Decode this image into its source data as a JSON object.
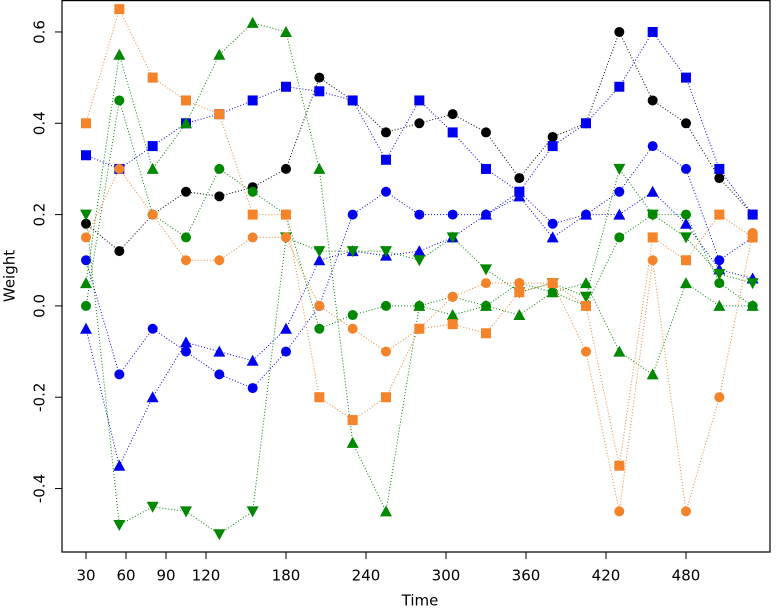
{
  "chart_data": {
    "type": "scatter",
    "x_label": "Time",
    "y_label": "Weight",
    "x": [
      30,
      55,
      80,
      105,
      130,
      155,
      180,
      205,
      230,
      255,
      280,
      305,
      330,
      355,
      380,
      405,
      430,
      455,
      480,
      505,
      530
    ],
    "xlim": [
      12,
      543
    ],
    "ylim": [
      -0.539,
      0.67
    ],
    "xticks": [
      30,
      60,
      90,
      120,
      180,
      240,
      300,
      360,
      420,
      480
    ],
    "yticks": [
      -0.4,
      -0.2,
      {
        "value": 0,
        "label": "0.0"
      },
      0.2,
      0.4,
      0.6
    ],
    "series": [
      {
        "color": "#000000",
        "marker": "circle",
        "values": [
          0.18,
          0.12,
          0.2,
          0.25,
          0.24,
          0.26,
          0.3,
          0.5,
          0.45,
          0.38,
          0.4,
          0.42,
          0.38,
          0.28,
          0.37,
          0.4,
          0.6,
          0.45,
          0.4,
          0.28,
          0.2
        ]
      },
      {
        "color": "#0000ee",
        "marker": "square",
        "values": [
          0.33,
          0.3,
          0.35,
          0.4,
          0.42,
          0.45,
          0.48,
          0.47,
          0.45,
          0.32,
          0.45,
          0.38,
          0.3,
          0.25,
          0.35,
          0.4,
          0.48,
          0.6,
          0.5,
          0.3,
          0.2
        ]
      },
      {
        "color": "#0000ee",
        "marker": "circle",
        "values": [
          0.1,
          -0.15,
          -0.05,
          -0.1,
          -0.15,
          -0.18,
          -0.1,
          0.0,
          0.2,
          0.25,
          0.2,
          0.2,
          0.2,
          0.25,
          0.18,
          0.2,
          0.25,
          0.35,
          0.3,
          0.1,
          0.15
        ]
      },
      {
        "color": "#0000ee",
        "marker": "triangle",
        "values": [
          -0.05,
          -0.35,
          -0.2,
          -0.08,
          -0.1,
          -0.12,
          -0.05,
          0.1,
          0.12,
          0.11,
          0.12,
          0.15,
          0.2,
          0.24,
          0.15,
          0.2,
          0.2,
          0.25,
          0.18,
          0.08,
          0.06
        ]
      },
      {
        "color": "#008800",
        "marker": "triangle",
        "values": [
          0.05,
          0.55,
          0.3,
          0.4,
          0.55,
          0.62,
          0.6,
          0.3,
          -0.3,
          -0.45,
          0.0,
          -0.02,
          0.0,
          -0.02,
          0.03,
          0.05,
          -0.1,
          -0.15,
          0.05,
          0.0,
          0.0
        ]
      },
      {
        "color": "#008800",
        "marker": "triangle-down",
        "values": [
          0.2,
          -0.48,
          -0.44,
          -0.45,
          -0.5,
          -0.45,
          0.15,
          0.12,
          0.12,
          0.12,
          0.1,
          0.15,
          0.08,
          0.03,
          0.05,
          0.02,
          0.3,
          0.2,
          0.15,
          0.07,
          0.05
        ]
      },
      {
        "color": "#008800",
        "marker": "circle",
        "values": [
          0.0,
          0.45,
          0.2,
          0.15,
          0.3,
          0.25,
          0.2,
          -0.05,
          -0.02,
          0.0,
          0.0,
          0.02,
          0.0,
          0.05,
          0.03,
          0.0,
          0.15,
          0.2,
          0.2,
          0.05,
          0.0
        ]
      },
      {
        "color": "#f5832a",
        "marker": "square",
        "values": [
          0.4,
          0.65,
          0.5,
          0.45,
          0.42,
          0.2,
          0.2,
          -0.2,
          -0.25,
          -0.2,
          -0.05,
          -0.04,
          -0.06,
          0.03,
          0.05,
          0.0,
          -0.35,
          0.15,
          0.1,
          0.2,
          0.15
        ]
      },
      {
        "color": "#f5832a",
        "marker": "circle",
        "values": [
          0.15,
          0.3,
          0.2,
          0.1,
          0.1,
          0.15,
          0.15,
          0.0,
          -0.05,
          -0.1,
          -0.05,
          0.02,
          0.05,
          0.05,
          0.05,
          -0.1,
          -0.45,
          0.1,
          -0.45,
          -0.2,
          0.16
        ]
      }
    ]
  }
}
